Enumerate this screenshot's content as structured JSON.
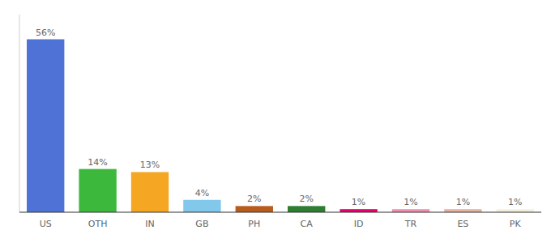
{
  "chart_data": {
    "type": "bar",
    "categories": [
      "US",
      "OTH",
      "IN",
      "GB",
      "PH",
      "CA",
      "ID",
      "TR",
      "ES",
      "PK"
    ],
    "values": [
      56,
      14,
      13,
      4,
      2,
      2,
      1,
      1,
      1,
      1
    ],
    "value_labels": [
      "56%",
      "14%",
      "13%",
      "4%",
      "2%",
      "2%",
      "1%",
      "1%",
      "1%",
      "1%"
    ],
    "colors": [
      "#4e72d6",
      "#3cb93c",
      "#f5a623",
      "#82c8ea",
      "#b85c1e",
      "#2e7d32",
      "#e8006e",
      "#f48fb1",
      "#e8b4a0",
      "#f5f0dc"
    ],
    "ylim": [
      0,
      64
    ],
    "data_labels": true,
    "tick_labels": "x",
    "grid": false
  }
}
